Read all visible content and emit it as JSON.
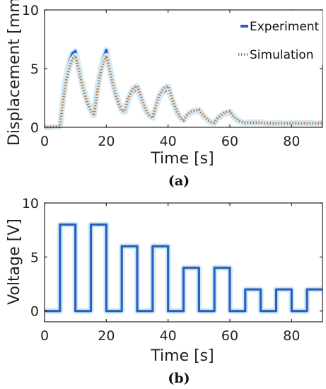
{
  "colors": {
    "experiment": "#2a5fbf",
    "simulation": "#d2691e",
    "axis": "#262626",
    "glow": "#cfeaf8"
  },
  "chart_data": [
    {
      "type": "line",
      "caption": "(a)",
      "xlabel": "Time [s]",
      "ylabel": "Displacement [mm]",
      "xlim": [
        0,
        90
      ],
      "ylim": [
        0,
        10
      ],
      "xticks": [
        "0",
        "20",
        "40",
        "60",
        "80"
      ],
      "yticks": [
        "0",
        "5",
        "10"
      ],
      "legend_position": "top-right",
      "grid": false,
      "series": [
        {
          "name": "Experiment",
          "style": "solid",
          "x": [
            0,
            5,
            6,
            7,
            8,
            9,
            10,
            11,
            12,
            13,
            14,
            15,
            16,
            17,
            18,
            19,
            20,
            21,
            22,
            23,
            24,
            25,
            26,
            27,
            28,
            29,
            30,
            31,
            32,
            33,
            34,
            35,
            36,
            37,
            38,
            39,
            40,
            41,
            42,
            43,
            44,
            45,
            46,
            47,
            48,
            49,
            50,
            51,
            52,
            53,
            54,
            55,
            56,
            57,
            58,
            59,
            60,
            61,
            62,
            63,
            64,
            65,
            67,
            70,
            72,
            75,
            78,
            80,
            82,
            85,
            88,
            90
          ],
          "y": [
            0.0,
            0.05,
            2.6,
            4.4,
            5.6,
            6.3,
            6.5,
            5.3,
            4.0,
            3.0,
            2.2,
            1.6,
            1.1,
            3.2,
            4.8,
            5.9,
            6.6,
            5.3,
            4.0,
            3.0,
            2.2,
            1.5,
            1.3,
            2.2,
            2.8,
            3.1,
            3.2,
            2.6,
            1.9,
            1.3,
            1.0,
            0.8,
            1.7,
            2.4,
            2.9,
            3.1,
            3.2,
            2.5,
            1.8,
            1.2,
            0.8,
            0.6,
            0.95,
            1.15,
            1.3,
            1.35,
            1.4,
            1.1,
            0.8,
            0.55,
            0.4,
            0.35,
            0.7,
            0.95,
            1.1,
            1.2,
            1.25,
            0.95,
            0.7,
            0.5,
            0.4,
            0.35,
            0.45,
            0.45,
            0.3,
            0.4,
            0.3,
            0.4,
            0.35,
            0.4,
            0.3,
            0.4
          ]
        },
        {
          "name": "Simulation",
          "style": "dotted",
          "x": [
            0,
            5,
            6,
            7,
            8,
            9,
            10,
            11,
            12,
            13,
            14,
            15,
            16,
            17,
            18,
            19,
            20,
            21,
            22,
            23,
            24,
            25,
            26,
            27,
            28,
            29,
            30,
            31,
            32,
            33,
            34,
            35,
            36,
            37,
            38,
            39,
            40,
            41,
            42,
            43,
            44,
            45,
            46,
            47,
            48,
            49,
            50,
            51,
            52,
            53,
            54,
            55,
            56,
            57,
            58,
            59,
            60,
            61,
            62,
            63,
            64,
            65,
            67,
            70,
            72,
            75,
            78,
            80,
            82,
            85,
            88,
            90
          ],
          "y": [
            0.0,
            0.05,
            2.3,
            4.0,
            5.1,
            5.8,
            6.1,
            5.0,
            3.8,
            2.8,
            2.0,
            1.4,
            1.0,
            2.9,
            4.5,
            5.5,
            6.1,
            5.0,
            3.8,
            2.8,
            2.0,
            1.4,
            1.4,
            2.4,
            3.0,
            3.4,
            3.5,
            2.8,
            2.0,
            1.4,
            1.0,
            0.8,
            1.8,
            2.6,
            3.1,
            3.4,
            3.5,
            2.7,
            1.9,
            1.3,
            0.8,
            0.6,
            1.0,
            1.25,
            1.4,
            1.45,
            1.5,
            1.15,
            0.85,
            0.6,
            0.45,
            0.4,
            0.75,
            1.0,
            1.2,
            1.3,
            1.35,
            1.0,
            0.75,
            0.55,
            0.45,
            0.4,
            0.4,
            0.4,
            0.35,
            0.35,
            0.35,
            0.35,
            0.35,
            0.35,
            0.35,
            0.35
          ]
        }
      ]
    },
    {
      "type": "line",
      "caption": "(b)",
      "xlabel": "Time [s]",
      "ylabel": "Voltage [V]",
      "xlim": [
        0,
        90
      ],
      "ylim": [
        -1,
        10
      ],
      "xticks": [
        "0",
        "20",
        "40",
        "60",
        "80"
      ],
      "yticks": [
        "0",
        "5",
        "10"
      ],
      "grid": false,
      "series": [
        {
          "style": "step",
          "x": [
            0,
            5,
            5,
            10,
            10,
            15,
            15,
            20,
            20,
            25,
            25,
            30,
            30,
            35,
            35,
            40,
            40,
            45,
            45,
            50,
            50,
            55,
            55,
            60,
            60,
            65,
            65,
            70,
            70,
            75,
            75,
            80,
            80,
            85,
            85,
            90
          ],
          "y": [
            0,
            0,
            8,
            8,
            0,
            0,
            8,
            8,
            0,
            0,
            6,
            6,
            0,
            0,
            6,
            6,
            0,
            0,
            4,
            4,
            0,
            0,
            4,
            4,
            0,
            0,
            2,
            2,
            0,
            0,
            2,
            2,
            0,
            0,
            2,
            2
          ]
        }
      ]
    }
  ]
}
